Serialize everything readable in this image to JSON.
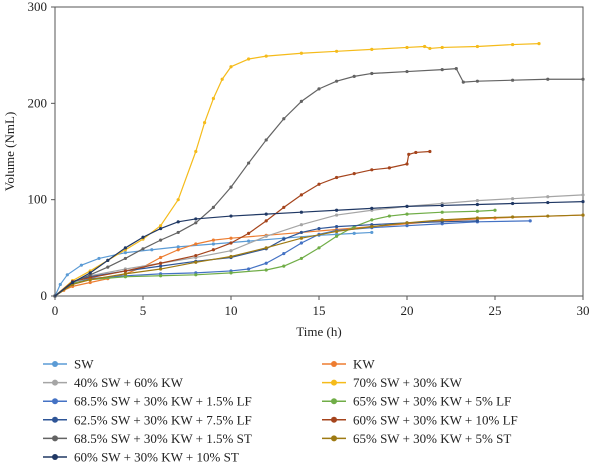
{
  "chart_data": {
    "type": "line",
    "xlabel": "Time (h)",
    "ylabel": "Volume (NmL)",
    "xlim": [
      0,
      30
    ],
    "ylim": [
      0,
      300
    ],
    "xticks": [
      0,
      5,
      10,
      15,
      20,
      25,
      30
    ],
    "yticks": [
      0,
      100,
      200,
      300
    ],
    "grid": false,
    "legend_position": "bottom",
    "series": [
      {
        "name": "SW",
        "color": "#5b9bd5",
        "points": [
          [
            0,
            0
          ],
          [
            0.3,
            12
          ],
          [
            0.7,
            22
          ],
          [
            1.5,
            32
          ],
          [
            2.5,
            39
          ],
          [
            4,
            45
          ],
          [
            5.5,
            48
          ],
          [
            7,
            51
          ],
          [
            9,
            54
          ],
          [
            11,
            57
          ],
          [
            13,
            60
          ],
          [
            15,
            63
          ],
          [
            16,
            64
          ],
          [
            17,
            65
          ],
          [
            18,
            66
          ]
        ]
      },
      {
        "name": "KW",
        "color": "#ed7d31",
        "points": [
          [
            0,
            0
          ],
          [
            0.5,
            6
          ],
          [
            1,
            10
          ],
          [
            2,
            14
          ],
          [
            3,
            18
          ],
          [
            4,
            23
          ],
          [
            5,
            30
          ],
          [
            6,
            40
          ],
          [
            7,
            48
          ],
          [
            8,
            54
          ],
          [
            9,
            58
          ],
          [
            10,
            60
          ],
          [
            12,
            63
          ],
          [
            14,
            66
          ],
          [
            16,
            69
          ],
          [
            18,
            72
          ],
          [
            20,
            75
          ],
          [
            22,
            78
          ],
          [
            25,
            81
          ],
          [
            30,
            84
          ]
        ]
      },
      {
        "name": "40% SW + 60% KW",
        "color": "#a5a5a5",
        "points": [
          [
            0,
            0
          ],
          [
            1,
            15
          ],
          [
            2,
            21
          ],
          [
            4,
            28
          ],
          [
            6,
            34
          ],
          [
            8,
            40
          ],
          [
            10,
            47
          ],
          [
            12,
            62
          ],
          [
            14,
            74
          ],
          [
            16,
            84
          ],
          [
            18,
            89
          ],
          [
            20,
            93
          ],
          [
            22,
            96
          ],
          [
            24,
            99
          ],
          [
            26,
            101
          ],
          [
            28,
            103
          ],
          [
            30,
            105
          ]
        ]
      },
      {
        "name": "70% SW + 30% KW",
        "color": "#f5bb1a",
        "points": [
          [
            0,
            0
          ],
          [
            1,
            16
          ],
          [
            2,
            26
          ],
          [
            3,
            37
          ],
          [
            4,
            48
          ],
          [
            5,
            59
          ],
          [
            6,
            73
          ],
          [
            7,
            100
          ],
          [
            8,
            150
          ],
          [
            8.5,
            180
          ],
          [
            9,
            205
          ],
          [
            9.5,
            225
          ],
          [
            10,
            238
          ],
          [
            11,
            246
          ],
          [
            12,
            249
          ],
          [
            14,
            252
          ],
          [
            16,
            254
          ],
          [
            18,
            256
          ],
          [
            20,
            258
          ],
          [
            21,
            259
          ],
          [
            21.3,
            257
          ],
          [
            22,
            258
          ],
          [
            24,
            259
          ],
          [
            26,
            261
          ],
          [
            27.5,
            262
          ]
        ]
      },
      {
        "name": "68.5% SW + 30% KW + 1.5% LF",
        "color": "#4472c4",
        "points": [
          [
            0,
            0
          ],
          [
            1,
            13
          ],
          [
            2,
            18
          ],
          [
            4,
            21
          ],
          [
            6,
            23
          ],
          [
            8,
            24
          ],
          [
            10,
            26
          ],
          [
            11,
            28
          ],
          [
            12,
            34
          ],
          [
            13,
            44
          ],
          [
            14,
            55
          ],
          [
            15,
            64
          ],
          [
            16,
            68
          ],
          [
            18,
            71
          ],
          [
            20,
            73
          ],
          [
            22,
            75
          ],
          [
            24,
            77
          ],
          [
            27,
            78
          ]
        ]
      },
      {
        "name": "65% SW + 30% KW + 5% LF",
        "color": "#70ad47",
        "points": [
          [
            0,
            0
          ],
          [
            1,
            13
          ],
          [
            2,
            17
          ],
          [
            4,
            20
          ],
          [
            6,
            21
          ],
          [
            8,
            22
          ],
          [
            10,
            24
          ],
          [
            12,
            27
          ],
          [
            13,
            31
          ],
          [
            14,
            39
          ],
          [
            15,
            50
          ],
          [
            16,
            62
          ],
          [
            17,
            72
          ],
          [
            18,
            79
          ],
          [
            19,
            83
          ],
          [
            20,
            85
          ],
          [
            22,
            87
          ],
          [
            24,
            88
          ],
          [
            25,
            89
          ]
        ]
      },
      {
        "name": "62.5% SW + 30% KW + 7.5% LF",
        "color": "#2e5597",
        "points": [
          [
            0,
            0
          ],
          [
            1,
            15
          ],
          [
            2,
            20
          ],
          [
            4,
            26
          ],
          [
            6,
            31
          ],
          [
            8,
            36
          ],
          [
            10,
            40
          ],
          [
            12,
            49
          ],
          [
            13,
            59
          ],
          [
            14,
            66
          ],
          [
            15,
            70
          ],
          [
            16,
            72
          ],
          [
            18,
            74
          ],
          [
            20,
            76
          ],
          [
            22,
            77
          ],
          [
            24,
            78
          ]
        ]
      },
      {
        "name": "60% SW + 30% KW + 10% LF",
        "color": "#a5441c",
        "points": [
          [
            0,
            0
          ],
          [
            1,
            15
          ],
          [
            2,
            19
          ],
          [
            4,
            26
          ],
          [
            6,
            34
          ],
          [
            8,
            42
          ],
          [
            9,
            48
          ],
          [
            10,
            55
          ],
          [
            11,
            65
          ],
          [
            12,
            78
          ],
          [
            13,
            92
          ],
          [
            14,
            105
          ],
          [
            15,
            116
          ],
          [
            16,
            123
          ],
          [
            17,
            127
          ],
          [
            18,
            131
          ],
          [
            19,
            133
          ],
          [
            20,
            137
          ],
          [
            20.1,
            147
          ],
          [
            20.5,
            149
          ],
          [
            21.3,
            150
          ]
        ]
      },
      {
        "name": "68.5% SW + 30% KW + 1.5% ST",
        "color": "#636363",
        "points": [
          [
            0,
            0
          ],
          [
            1,
            14
          ],
          [
            2,
            22
          ],
          [
            3,
            30
          ],
          [
            4,
            39
          ],
          [
            5,
            49
          ],
          [
            6,
            58
          ],
          [
            7,
            66
          ],
          [
            8,
            76
          ],
          [
            9,
            92
          ],
          [
            10,
            113
          ],
          [
            11,
            138
          ],
          [
            12,
            162
          ],
          [
            13,
            184
          ],
          [
            14,
            202
          ],
          [
            15,
            215
          ],
          [
            16,
            223
          ],
          [
            17,
            228
          ],
          [
            18,
            231
          ],
          [
            20,
            233
          ],
          [
            22,
            235
          ],
          [
            22.8,
            236
          ],
          [
            23.2,
            222
          ],
          [
            24,
            223
          ],
          [
            26,
            224
          ],
          [
            28,
            225
          ],
          [
            30,
            225
          ]
        ]
      },
      {
        "name": "65% SW + 30% KW + 5% ST",
        "color": "#9e7a12",
        "points": [
          [
            0,
            0
          ],
          [
            1,
            12
          ],
          [
            2,
            17
          ],
          [
            4,
            23
          ],
          [
            6,
            28
          ],
          [
            8,
            35
          ],
          [
            10,
            41
          ],
          [
            12,
            50
          ],
          [
            14,
            60
          ],
          [
            16,
            67
          ],
          [
            18,
            72
          ],
          [
            20,
            76
          ],
          [
            22,
            79
          ],
          [
            24,
            81
          ],
          [
            26,
            82
          ],
          [
            28,
            83
          ],
          [
            30,
            84
          ]
        ]
      },
      {
        "name": "60% SW + 30% KW + 10% ST",
        "color": "#203864",
        "points": [
          [
            0,
            0
          ],
          [
            1,
            14
          ],
          [
            2,
            24
          ],
          [
            3,
            37
          ],
          [
            4,
            50
          ],
          [
            5,
            61
          ],
          [
            6,
            70
          ],
          [
            7,
            77
          ],
          [
            8,
            80
          ],
          [
            10,
            83
          ],
          [
            12,
            85
          ],
          [
            14,
            87
          ],
          [
            16,
            89
          ],
          [
            18,
            91
          ],
          [
            20,
            93
          ],
          [
            22,
            94
          ],
          [
            24,
            95
          ],
          [
            26,
            96
          ],
          [
            28,
            97
          ],
          [
            30,
            98
          ]
        ]
      }
    ]
  }
}
